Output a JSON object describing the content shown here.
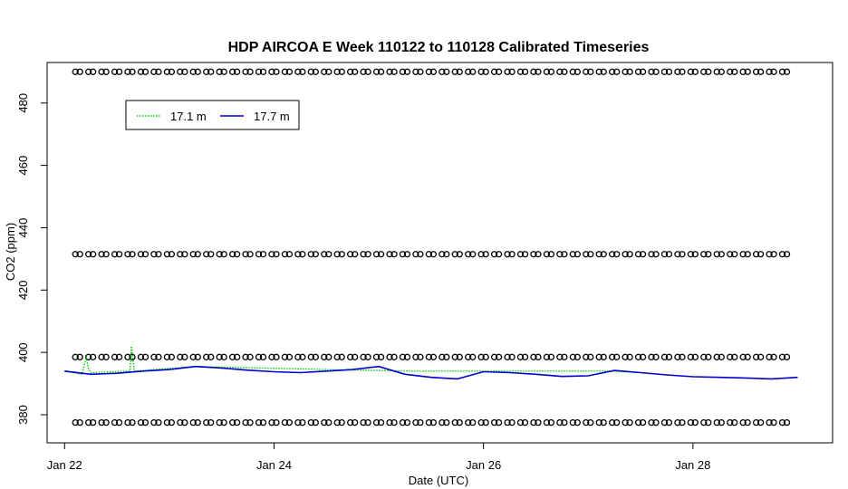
{
  "chart_data": {
    "type": "line",
    "title": "HDP AIRCOA E  Week 110122 to 110128  Calibrated Timeseries",
    "xlabel": "Date (UTC)",
    "ylabel": "CO2 (ppm)",
    "x_axis": {
      "range": [
        "2011-01-21 20:00",
        "2011-01-29 08:00"
      ],
      "ticks": [
        {
          "date": "2011-01-22",
          "label": "Jan 22"
        },
        {
          "date": "2011-01-24",
          "label": "Jan 24"
        },
        {
          "date": "2011-01-26",
          "label": "Jan 26"
        },
        {
          "date": "2011-01-28",
          "label": "Jan 28"
        }
      ]
    },
    "y_axis": {
      "range": [
        371,
        493
      ],
      "ticks": [
        {
          "value": 380,
          "label": "380"
        },
        {
          "value": 400,
          "label": "400"
        },
        {
          "value": 420,
          "label": "420"
        },
        {
          "value": 440,
          "label": "440"
        },
        {
          "value": 460,
          "label": "460"
        },
        {
          "value": 480,
          "label": "480"
        }
      ]
    },
    "grid": false,
    "legend": {
      "placement": "top-left",
      "boxed": true
    },
    "series": [
      {
        "name": "17.1 m",
        "color": "#00cc00",
        "style": "dotted",
        "x": [
          "2011-01-22 00:00",
          "2011-01-22 04:00",
          "2011-01-22 05:00",
          "2011-01-22 05:30",
          "2011-01-22 06:00",
          "2011-01-22 11:00",
          "2011-01-22 15:00",
          "2011-01-22 15:20",
          "2011-01-22 16:00",
          "2011-01-23 06:00",
          "2011-01-24 12:00",
          "2011-01-25 08:00",
          "2011-01-27 05:00",
          "2011-01-27 12:00"
        ],
        "y": [
          394,
          393,
          398.5,
          394.5,
          393.5,
          393.8,
          394,
          402,
          394,
          395.5,
          394.5,
          394,
          394,
          393.5
        ]
      },
      {
        "name": "17.7 m",
        "color": "#0000cc",
        "style": "solid",
        "x": [
          "2011-01-22 00:00",
          "2011-01-22 06:00",
          "2011-01-22 12:00",
          "2011-01-22 18:00",
          "2011-01-23 00:00",
          "2011-01-23 06:00",
          "2011-01-23 12:00",
          "2011-01-23 18:00",
          "2011-01-24 00:00",
          "2011-01-24 06:00",
          "2011-01-24 12:00",
          "2011-01-24 18:00",
          "2011-01-25 00:00",
          "2011-01-25 06:00",
          "2011-01-25 12:00",
          "2011-01-25 18:00",
          "2011-01-26 00:00",
          "2011-01-26 06:00",
          "2011-01-26 12:00",
          "2011-01-26 18:00",
          "2011-01-27 00:00",
          "2011-01-27 06:00",
          "2011-01-27 12:00",
          "2011-01-27 18:00",
          "2011-01-28 00:00",
          "2011-01-28 06:00",
          "2011-01-28 12:00",
          "2011-01-28 18:00",
          "2011-01-29 00:00"
        ],
        "y": [
          394,
          393,
          393.3,
          394,
          394.5,
          395.5,
          395,
          394.3,
          393.8,
          393.5,
          394,
          394.5,
          395.5,
          393,
          392,
          391.5,
          393.8,
          393.5,
          393,
          392.3,
          392.5,
          394.2,
          393.5,
          392.8,
          392.2,
          392,
          391.8,
          391.5,
          392
        ]
      }
    ],
    "reference_markers": {
      "description": "calibration standard levels plotted as open circles across the week",
      "marker": "open-circle",
      "levels_ppm": [
        377.5,
        398.5,
        431.5,
        490
      ],
      "first_date": "2011-01-22 03:00",
      "last_date": "2011-01-28 23:00",
      "interval_hours": 3
    }
  }
}
